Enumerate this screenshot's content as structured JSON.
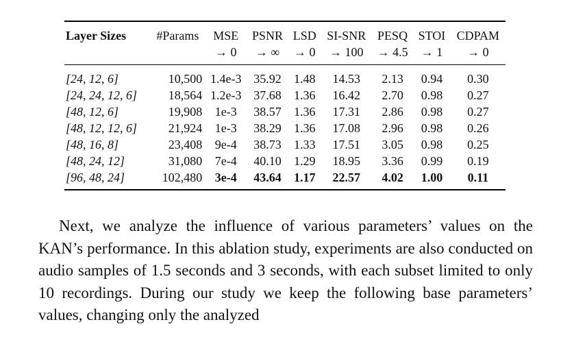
{
  "table": {
    "headers": [
      {
        "line1": "Layer Sizes",
        "line2": ""
      },
      {
        "line1": "#Params",
        "line2": ""
      },
      {
        "line1": "MSE",
        "line2": "→ 0"
      },
      {
        "line1": "PSNR",
        "line2": "→ ∞"
      },
      {
        "line1": "LSD",
        "line2": "→ 0"
      },
      {
        "line1": "SI-SNR",
        "line2": "→ 100"
      },
      {
        "line1": "PESQ",
        "line2": "→ 4.5"
      },
      {
        "line1": "STOI",
        "line2": "→ 1"
      },
      {
        "line1": "CDPAM",
        "line2": "→ 0"
      }
    ],
    "rows": [
      [
        "[24, 12, 6]",
        "10,500",
        "1.4e-3",
        "35.92",
        "1.48",
        "14.53",
        "2.13",
        "0.94",
        "0.30"
      ],
      [
        "[24, 24, 12, 6]",
        "18,564",
        "1.2e-3",
        "37.68",
        "1.36",
        "16.42",
        "2.70",
        "0.98",
        "0.27"
      ],
      [
        "[48, 12, 6]",
        "19,908",
        "1e-3",
        "38.57",
        "1.36",
        "17.31",
        "2.86",
        "0.98",
        "0.27"
      ],
      [
        "[48, 12, 12, 6]",
        "21,924",
        "1e-3",
        "38.29",
        "1.36",
        "17.08",
        "2.96",
        "0.98",
        "0.26"
      ],
      [
        "[48, 16, 8]",
        "23,408",
        "9e-4",
        "38.73",
        "1.33",
        "17.51",
        "3.05",
        "0.98",
        "0.25"
      ],
      [
        "[48, 24, 12]",
        "31,080",
        "7e-4",
        "40.10",
        "1.29",
        "18.95",
        "3.36",
        "0.99",
        "0.19"
      ],
      [
        "[96, 48, 24]",
        "102,480",
        "3e-4",
        "43.64",
        "1.17",
        "22.57",
        "4.02",
        "1.00",
        "0.11"
      ]
    ]
  },
  "paragraph": {
    "text": "Next, we analyze the influence of various parameters’ values on the KAN’s performance. In this ablation study, experiments are also conducted on audio samples of 1.5 seconds and 3 seconds, with each subset limited to only 10 recordings. During our study we keep the following base parameters’ values, changing only the analyzed"
  }
}
